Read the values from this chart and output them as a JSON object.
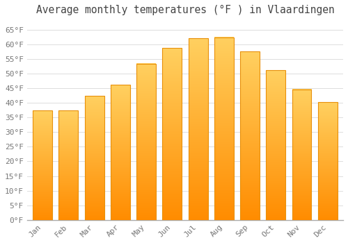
{
  "title": "Average monthly temperatures (°F ) in Vlaardingen",
  "categories": [
    "Jan",
    "Feb",
    "Mar",
    "Apr",
    "May",
    "Jun",
    "Jul",
    "Aug",
    "Sep",
    "Oct",
    "Nov",
    "Dec"
  ],
  "values": [
    37.4,
    37.4,
    42.3,
    46.2,
    53.4,
    58.8,
    62.1,
    62.4,
    57.6,
    51.1,
    44.6,
    40.3
  ],
  "bar_color_top": "#FFB800",
  "bar_color_bottom": "#FF8C00",
  "background_color": "#FFFFFF",
  "grid_color": "#DDDDDD",
  "text_color": "#777777",
  "ylim": [
    0,
    68
  ],
  "yticks": [
    0,
    5,
    10,
    15,
    20,
    25,
    30,
    35,
    40,
    45,
    50,
    55,
    60,
    65
  ],
  "ytick_labels": [
    "0°F",
    "5°F",
    "10°F",
    "15°F",
    "20°F",
    "25°F",
    "30°F",
    "35°F",
    "40°F",
    "45°F",
    "50°F",
    "55°F",
    "60°F",
    "65°F"
  ],
  "title_fontsize": 10.5,
  "tick_fontsize": 8,
  "figsize": [
    5.0,
    3.5
  ],
  "dpi": 100
}
